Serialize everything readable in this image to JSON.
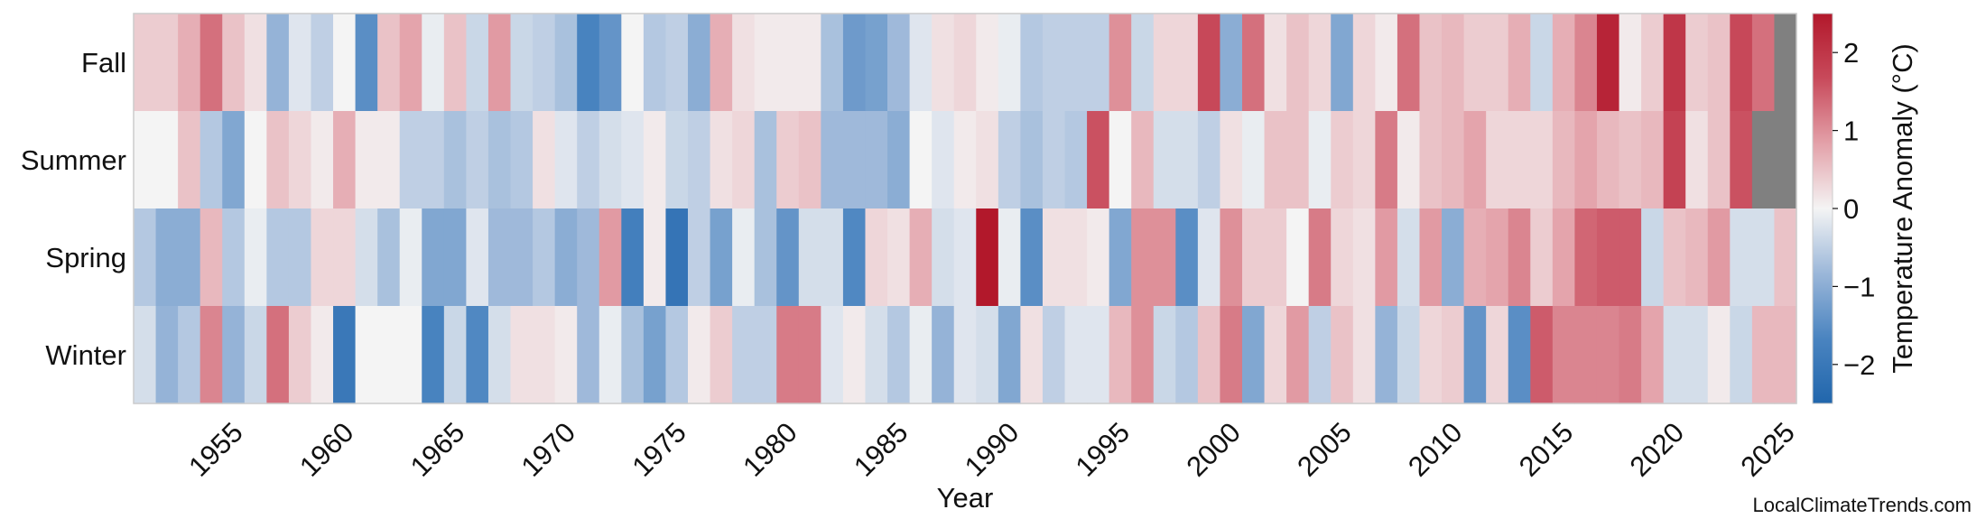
{
  "source_credit": "LocalClimateTrends.com",
  "colors": {
    "missing": "#808080",
    "scale": [
      "#2166ac",
      "#4a84c0",
      "#9bb7d9",
      "#f4f4f4",
      "#e3a1a9",
      "#c84a5b",
      "#b2182b"
    ]
  },
  "chart_data": {
    "type": "heatmap",
    "title": "",
    "xlabel": "Year",
    "ylabel": "",
    "x": [
      1951,
      1952,
      1953,
      1954,
      1955,
      1956,
      1957,
      1958,
      1959,
      1960,
      1961,
      1962,
      1963,
      1964,
      1965,
      1966,
      1967,
      1968,
      1969,
      1970,
      1971,
      1972,
      1973,
      1974,
      1975,
      1976,
      1977,
      1978,
      1979,
      1980,
      1981,
      1982,
      1983,
      1984,
      1985,
      1986,
      1987,
      1988,
      1989,
      1990,
      1991,
      1992,
      1993,
      1994,
      1995,
      1996,
      1997,
      1998,
      1999,
      2000,
      2001,
      2002,
      2003,
      2004,
      2005,
      2006,
      2007,
      2008,
      2009,
      2010,
      2011,
      2012,
      2013,
      2014,
      2015,
      2016,
      2017,
      2018,
      2019,
      2020,
      2021,
      2022,
      2023,
      2024,
      2025
    ],
    "x_ticks": [
      1955,
      1960,
      1965,
      1970,
      1975,
      1980,
      1985,
      1990,
      1995,
      2000,
      2005,
      2010,
      2015,
      2020,
      2025
    ],
    "y_categories": [
      "Fall",
      "Summer",
      "Spring",
      "Winter"
    ],
    "zlim": [
      -2.5,
      2.5
    ],
    "colorbar": {
      "label": "Temperature Anomaly (°C)",
      "ticks": [
        -2,
        -1,
        0,
        1,
        2
      ],
      "tick_labels": [
        "−2",
        "−1",
        "0",
        "1",
        "2"
      ]
    },
    "grid": false,
    "values": [
      [
        0.4,
        0.4,
        0.7,
        1.3,
        0.5,
        0.2,
        -0.9,
        -0.2,
        -0.5,
        0.0,
        -1.5,
        0.5,
        0.8,
        -0.1,
        0.5,
        -0.4,
        0.9,
        -0.4,
        -0.5,
        -0.7,
        -1.7,
        -1.4,
        0.0,
        -0.6,
        -0.5,
        -1.0,
        0.7,
        0.2,
        0.1,
        0.1,
        0.1,
        -0.7,
        -1.3,
        -1.2,
        -0.8,
        -0.2,
        0.2,
        0.3,
        0.1,
        -0.1,
        -0.6,
        -0.5,
        -0.5,
        -0.5,
        1.0,
        -0.4,
        0.3,
        0.3,
        1.7,
        -1.0,
        1.3,
        0.2,
        0.5,
        0.3,
        -1.1,
        0.3,
        0.1,
        1.3,
        0.5,
        0.6,
        0.4,
        0.4,
        0.7,
        -0.4,
        0.7,
        1.1,
        2.3,
        0.1,
        0.4,
        2.0,
        0.4,
        0.5,
        1.7,
        1.3,
        null
      ],
      [
        0.0,
        0.0,
        0.5,
        -0.6,
        -1.1,
        0.0,
        0.5,
        0.3,
        0.1,
        0.7,
        0.1,
        0.1,
        -0.5,
        -0.5,
        -0.7,
        -0.5,
        -0.7,
        -0.6,
        0.2,
        -0.2,
        -0.5,
        -0.3,
        -0.2,
        0.1,
        -0.4,
        -0.5,
        0.2,
        0.3,
        -0.7,
        0.4,
        0.5,
        -0.8,
        -0.8,
        -0.8,
        -1.0,
        0.0,
        -0.2,
        0.1,
        0.2,
        -0.5,
        -0.7,
        -0.5,
        -0.6,
        1.6,
        0.0,
        0.6,
        -0.3,
        -0.3,
        -0.5,
        0.2,
        -0.1,
        0.5,
        0.5,
        -0.1,
        0.4,
        0.3,
        1.2,
        0.1,
        0.5,
        0.6,
        0.8,
        0.3,
        0.3,
        0.3,
        0.6,
        0.8,
        0.6,
        0.5,
        0.6,
        1.8,
        0.2,
        0.5,
        1.6,
        null,
        null
      ],
      [
        -0.6,
        -1.0,
        -1.0,
        0.6,
        -0.6,
        -0.1,
        -0.6,
        -0.6,
        0.3,
        0.3,
        -0.3,
        -0.7,
        -0.1,
        -1.1,
        -1.1,
        -0.2,
        -0.8,
        -0.8,
        -0.6,
        -1.0,
        -0.8,
        0.9,
        -1.8,
        0.1,
        -2.1,
        -0.5,
        -1.2,
        -0.1,
        -0.7,
        -1.4,
        -0.3,
        -0.3,
        -1.6,
        0.3,
        0.2,
        0.7,
        -0.3,
        -0.2,
        2.5,
        -0.1,
        -1.5,
        0.2,
        0.2,
        0.1,
        -1.1,
        1.0,
        1.0,
        -1.5,
        -0.2,
        1.0,
        0.4,
        0.4,
        0.0,
        1.2,
        0.3,
        0.2,
        0.9,
        -0.3,
        0.9,
        -1.0,
        0.7,
        0.8,
        1.1,
        0.4,
        0.8,
        1.4,
        1.5,
        1.5,
        -0.4,
        0.5,
        0.6,
        0.9,
        -0.3,
        -0.3,
        0.5
      ],
      [
        -0.3,
        -0.9,
        -0.6,
        1.1,
        -0.9,
        -0.4,
        1.3,
        0.4,
        0.1,
        -2.0,
        0.0,
        0.0,
        0.0,
        -1.7,
        -0.4,
        -1.6,
        -0.3,
        0.2,
        0.2,
        0.1,
        -0.8,
        -0.1,
        -0.7,
        -1.2,
        -0.6,
        0.1,
        0.4,
        -0.5,
        -0.5,
        1.2,
        1.2,
        -0.2,
        0.1,
        -0.3,
        -0.6,
        -0.1,
        -0.9,
        -0.2,
        -0.3,
        -1.1,
        0.2,
        -0.5,
        -0.2,
        -0.2,
        0.6,
        1.0,
        -0.4,
        -0.6,
        0.5,
        1.2,
        -1.1,
        0.3,
        0.9,
        -0.5,
        0.5,
        0.2,
        -0.9,
        -0.4,
        0.3,
        0.4,
        -1.4,
        0.3,
        -1.5,
        1.5,
        1.1,
        1.1,
        1.1,
        1.2,
        0.8,
        -0.3,
        -0.3,
        0.1,
        -0.4,
        0.6,
        0.6
      ]
    ]
  }
}
